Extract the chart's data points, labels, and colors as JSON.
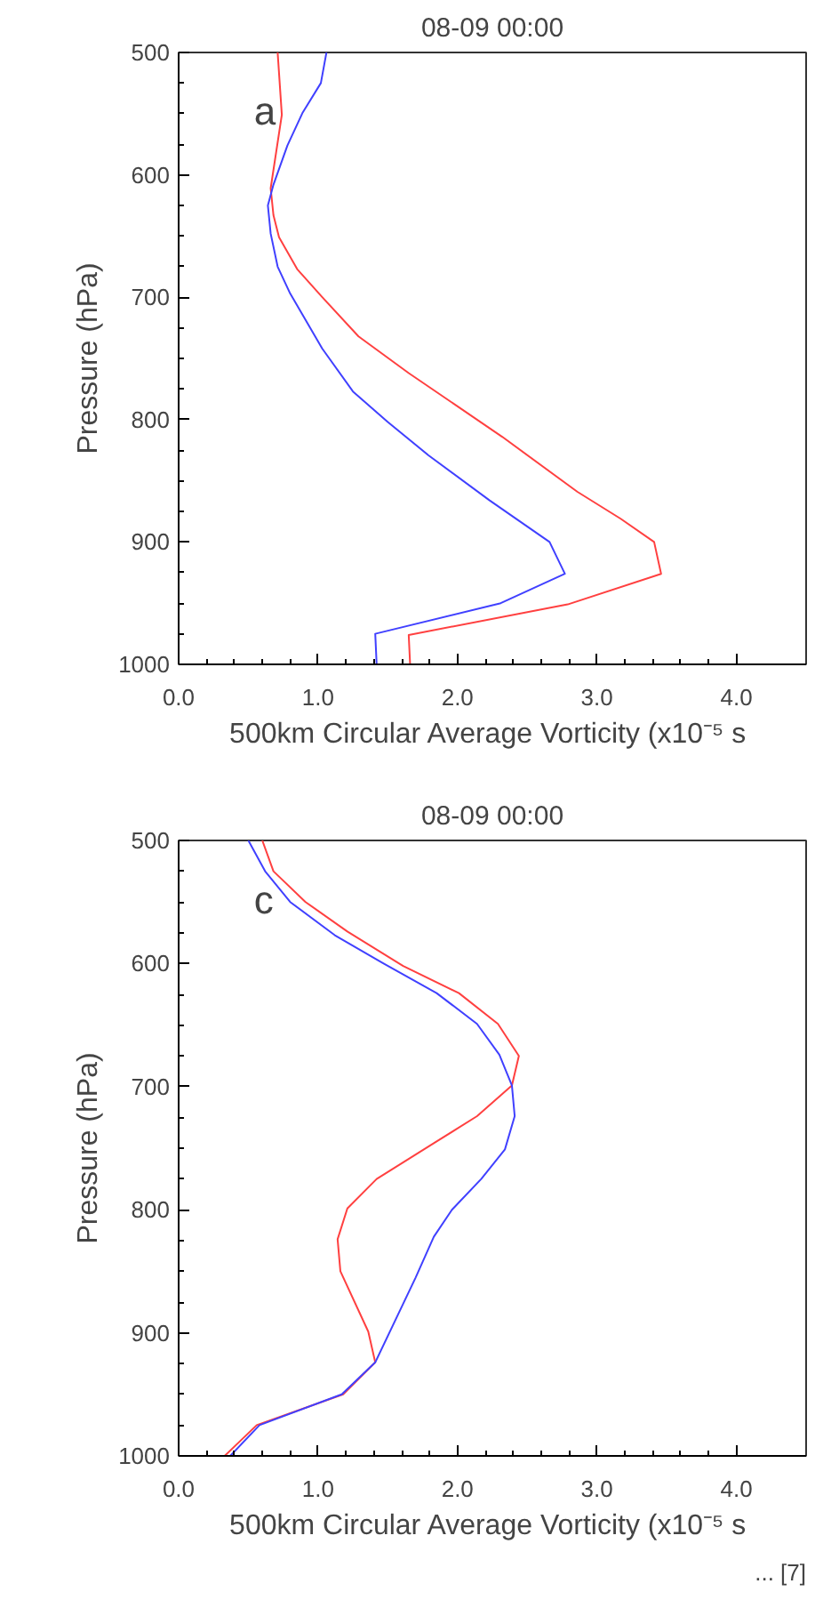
{
  "chart_data": [
    {
      "type": "line",
      "title": "08-09 00:00",
      "xlabel": "500km Circular Average Vorticity  (x10⁻⁵ s",
      "ylabel": "Pressure (hPa)",
      "annotations": [
        "a"
      ],
      "xlim": [
        0,
        4.5
      ],
      "ylim": [
        1000,
        500
      ],
      "xticks": [
        {
          "value": 0,
          "label": "0.0"
        },
        {
          "value": 1,
          "label": "1.0"
        },
        {
          "value": 2,
          "label": "2.0"
        },
        {
          "value": 3,
          "label": "3.0"
        },
        {
          "value": 4,
          "label": "4.0"
        }
      ],
      "yticks": [
        500,
        600,
        700,
        800,
        900,
        1000
      ],
      "grid": false,
      "line_style": "solid",
      "series": [
        {
          "color": "#ff4040",
          "x": [
            0.71,
            0.74,
            0.66,
            0.68,
            0.72,
            0.85,
            1.03,
            1.29,
            1.65,
            2.32,
            2.86,
            3.17,
            3.41,
            3.46,
            2.79,
            1.65,
            1.66
          ],
          "values": [
            500,
            551,
            611,
            633,
            651,
            677,
            700,
            732,
            762,
            814,
            859,
            881,
            900,
            926,
            951,
            976,
            1000
          ]
        },
        {
          "color": "#4040ff",
          "x": [
            1.06,
            1.02,
            0.89,
            0.78,
            0.68,
            0.64,
            0.66,
            0.71,
            0.8,
            1.03,
            1.25,
            1.5,
            1.79,
            2.23,
            2.66,
            2.77,
            2.31,
            1.41,
            1.42
          ],
          "values": [
            500,
            525,
            549,
            576,
            608,
            625,
            648,
            675,
            697,
            742,
            777,
            802,
            829,
            866,
            900,
            926,
            950,
            975,
            1000
          ]
        }
      ]
    },
    {
      "type": "line",
      "title": "08-09 00:00",
      "xlabel": "500km Circular Average Vorticity  (x10⁻⁵ s",
      "ylabel": "Pressure (hPa)",
      "annotations": [
        "c",
        "... [7]"
      ],
      "xlim": [
        0,
        4.5
      ],
      "ylim": [
        1000,
        500
      ],
      "xticks": [
        {
          "value": 0,
          "label": "0.0"
        },
        {
          "value": 1,
          "label": "1.0"
        },
        {
          "value": 2,
          "label": "2.0"
        },
        {
          "value": 3,
          "label": "3.0"
        },
        {
          "value": 4,
          "label": "4.0"
        }
      ],
      "yticks": [
        500,
        600,
        700,
        800,
        900,
        1000
      ],
      "grid": false,
      "line_style": "solid",
      "series": [
        {
          "color": "#ff4040",
          "x": [
            0.6,
            0.68,
            0.91,
            1.21,
            1.61,
            2.01,
            2.29,
            2.44,
            2.39,
            2.14,
            1.83,
            1.42,
            1.21,
            1.14,
            1.16,
            1.36,
            1.41,
            1.18,
            0.56,
            0.33
          ],
          "values": [
            500,
            525,
            550,
            574,
            602,
            624,
            649,
            675,
            699,
            724,
            746,
            775,
            799,
            824,
            850,
            899,
            924,
            950,
            975,
            1000
          ]
        },
        {
          "color": "#4040ff",
          "x": [
            0.5,
            0.62,
            0.8,
            1.12,
            1.47,
            1.85,
            2.14,
            2.3,
            2.39,
            2.41,
            2.34,
            2.17,
            1.96,
            1.83,
            1.7,
            1.41,
            1.17,
            0.58,
            0.37
          ],
          "values": [
            500,
            525,
            550,
            577,
            600,
            624,
            649,
            674,
            699,
            724,
            751,
            775,
            800,
            822,
            855,
            924,
            950,
            975,
            1000
          ]
        }
      ]
    }
  ]
}
